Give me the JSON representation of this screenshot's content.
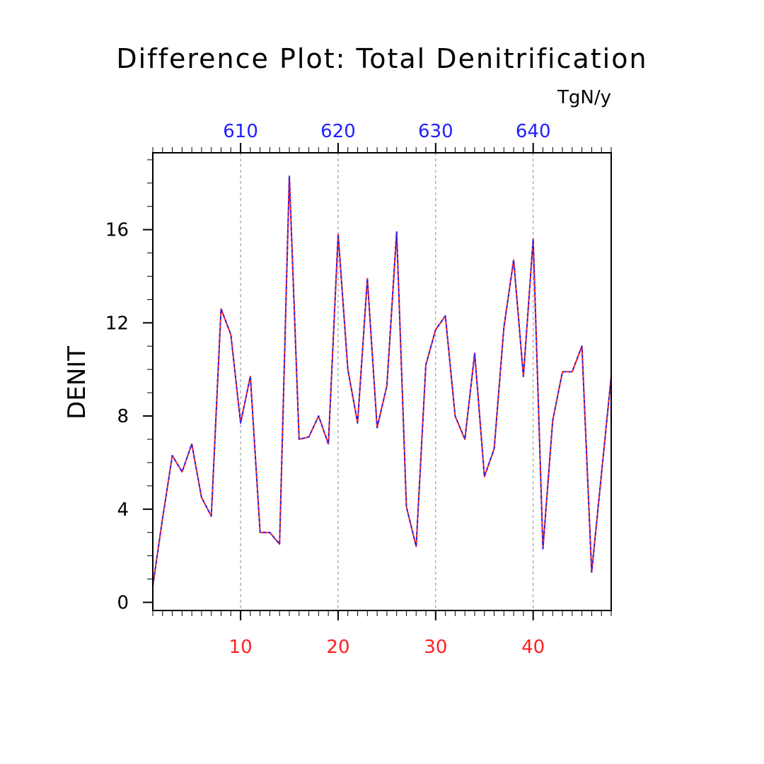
{
  "chart_data": {
    "type": "line",
    "title": "Difference Plot: Total Denitrification",
    "ylabel": "DENIT",
    "units": "TgN/y",
    "xlim": [
      1,
      48
    ],
    "ylim": [
      -0.35,
      19.3
    ],
    "yticks": [
      0,
      4,
      8,
      12,
      16
    ],
    "bottom_axis": {
      "ticks": [
        10,
        20,
        30,
        40
      ],
      "color": "#ff2020"
    },
    "top_axis": {
      "ticks": [
        610,
        620,
        630,
        640
      ],
      "offset": 600,
      "color": "#2020ff"
    },
    "grid_x": [
      10,
      20,
      30,
      40
    ],
    "series": [
      {
        "name": "series-red",
        "color": "#ff2020",
        "x": [
          1,
          2,
          3,
          4,
          5,
          6,
          7,
          8,
          9,
          10,
          11,
          12,
          13,
          14,
          15,
          16,
          17,
          18,
          19,
          20,
          21,
          22,
          23,
          24,
          25,
          26,
          27,
          28,
          29,
          30,
          31,
          32,
          33,
          34,
          35,
          36,
          37,
          38,
          39,
          40,
          41,
          42,
          43,
          44,
          45,
          46,
          47,
          48
        ],
        "values": [
          0.7,
          3.6,
          6.3,
          5.6,
          6.8,
          4.5,
          3.7,
          12.6,
          11.5,
          7.7,
          9.7,
          3.0,
          3.0,
          2.5,
          18.3,
          7.0,
          7.1,
          8.0,
          6.8,
          15.8,
          10.0,
          7.7,
          13.9,
          7.5,
          9.3,
          15.9,
          4.1,
          2.4,
          10.2,
          11.7,
          12.3,
          8.0,
          7.0,
          10.7,
          5.4,
          6.6,
          11.8,
          14.7,
          9.7,
          15.6,
          2.3,
          7.8,
          9.9,
          9.9,
          11.0,
          1.3,
          5.5,
          9.7
        ]
      },
      {
        "name": "series-blue",
        "color": "#2020ff",
        "x": [
          1,
          2,
          3,
          4,
          5,
          6,
          7,
          8,
          9,
          10,
          11,
          12,
          13,
          14,
          15,
          16,
          17,
          18,
          19,
          20,
          21,
          22,
          23,
          24,
          25,
          26,
          27,
          28,
          29,
          30,
          31,
          32,
          33,
          34,
          35,
          36,
          37,
          38,
          39,
          40,
          41,
          42,
          43,
          44,
          45,
          46,
          47,
          48
        ],
        "values": [
          0.7,
          3.6,
          6.3,
          5.6,
          6.8,
          4.5,
          3.7,
          12.6,
          11.5,
          7.7,
          9.7,
          3.0,
          3.0,
          2.5,
          18.3,
          7.0,
          7.1,
          8.0,
          6.8,
          15.8,
          10.0,
          7.7,
          13.9,
          7.5,
          9.3,
          15.9,
          4.1,
          2.4,
          10.2,
          11.7,
          12.3,
          8.0,
          7.0,
          10.7,
          5.4,
          6.6,
          11.8,
          14.7,
          9.7,
          15.6,
          2.3,
          7.8,
          9.9,
          9.9,
          11.0,
          1.3,
          5.5,
          9.7
        ]
      }
    ]
  }
}
